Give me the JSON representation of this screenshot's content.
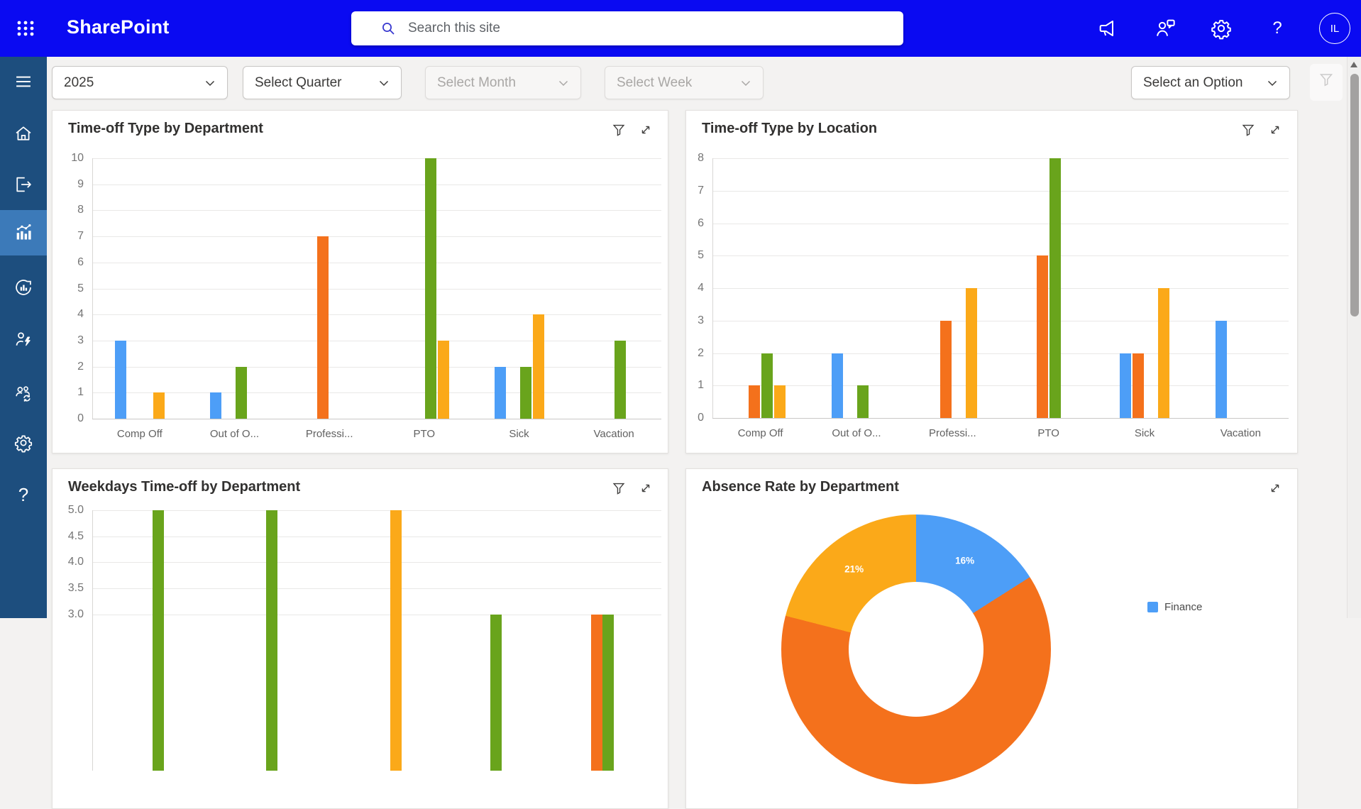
{
  "topbar": {
    "app_name": "SharePoint",
    "search_placeholder": "Search this site",
    "avatar_initials": "IL",
    "icons": [
      "app-launcher",
      "megaphone",
      "feedback",
      "settings",
      "help",
      "account"
    ]
  },
  "sidebar": {
    "active_item": "analytics",
    "icons": [
      "menu",
      "home",
      "sign-out",
      "analytics",
      "reports",
      "employee-quick-actions",
      "team-sync",
      "settings",
      "help"
    ]
  },
  "filters": {
    "year": {
      "value": "2025",
      "disabled": false
    },
    "quarter": {
      "value": "Select Quarter",
      "disabled": false
    },
    "month": {
      "value": "Select Month",
      "disabled": true
    },
    "week": {
      "value": "Select Week",
      "disabled": true
    },
    "option": {
      "value": "Select an Option",
      "disabled": false
    }
  },
  "colors": {
    "topbar_blue": "#0a0af2",
    "sidebar_blue": "#1d4e7e",
    "sidebar_active": "#3c7ab9",
    "blue": "#4d9ef7",
    "orange": "#f4711c",
    "green": "#69a41c",
    "amber": "#fba919",
    "grid": "#e9e8e7",
    "tick_text": "#757575"
  },
  "chart_data": [
    {
      "type": "bar",
      "title": "Time-off Type by Department",
      "header_icons": [
        "filter",
        "expand"
      ],
      "ylim": [
        0,
        10
      ],
      "y_ticks": [
        "10",
        "9",
        "8",
        "7",
        "6",
        "5",
        "4",
        "3",
        "2",
        "1",
        "0"
      ],
      "grid": true,
      "legend_position": "none",
      "categories": [
        "Comp Off",
        "Out of O...",
        "Professi...",
        "PTO",
        "Sick",
        "Vacation"
      ],
      "series_colors": [
        "blue",
        "orange",
        "green",
        "amber"
      ],
      "bars": [
        {
          "cat": 0,
          "slot": 0,
          "color": "blue",
          "value": 3
        },
        {
          "cat": 0,
          "slot": 3,
          "color": "amber",
          "value": 1
        },
        {
          "cat": 1,
          "slot": 0,
          "color": "blue",
          "value": 1
        },
        {
          "cat": 1,
          "slot": 2,
          "color": "green",
          "value": 2
        },
        {
          "cat": 2,
          "slot": 1,
          "color": "orange",
          "value": 7
        },
        {
          "cat": 3,
          "slot": 2,
          "color": "green",
          "value": 10
        },
        {
          "cat": 3,
          "slot": 3,
          "color": "amber",
          "value": 3
        },
        {
          "cat": 4,
          "slot": 0,
          "color": "blue",
          "value": 2
        },
        {
          "cat": 4,
          "slot": 2,
          "color": "green",
          "value": 2
        },
        {
          "cat": 4,
          "slot": 3,
          "color": "amber",
          "value": 4
        },
        {
          "cat": 5,
          "slot": 2,
          "color": "green",
          "value": 3
        }
      ]
    },
    {
      "type": "bar",
      "title": "Time-off Type by Location",
      "header_icons": [
        "filter",
        "expand"
      ],
      "ylim": [
        0,
        8
      ],
      "y_ticks": [
        "8",
        "7",
        "6",
        "5",
        "4",
        "3",
        "2",
        "1",
        "0"
      ],
      "grid": true,
      "legend_position": "none",
      "categories": [
        "Comp Off",
        "Out of O...",
        "Professi...",
        "PTO",
        "Sick",
        "Vacation"
      ],
      "series_colors": [
        "blue",
        "orange",
        "green",
        "amber"
      ],
      "bars": [
        {
          "cat": 0,
          "slot": 1,
          "color": "orange",
          "value": 1
        },
        {
          "cat": 0,
          "slot": 2,
          "color": "green",
          "value": 2
        },
        {
          "cat": 0,
          "slot": 3,
          "color": "amber",
          "value": 1
        },
        {
          "cat": 1,
          "slot": 0,
          "color": "blue",
          "value": 2
        },
        {
          "cat": 1,
          "slot": 2,
          "color": "green",
          "value": 1
        },
        {
          "cat": 2,
          "slot": 1,
          "color": "orange",
          "value": 3
        },
        {
          "cat": 2,
          "slot": 3,
          "color": "amber",
          "value": 4
        },
        {
          "cat": 3,
          "slot": 1,
          "color": "orange",
          "value": 5
        },
        {
          "cat": 3,
          "slot": 2,
          "color": "green",
          "value": 8
        },
        {
          "cat": 4,
          "slot": 0,
          "color": "blue",
          "value": 2
        },
        {
          "cat": 4,
          "slot": 1,
          "color": "orange",
          "value": 2
        },
        {
          "cat": 4,
          "slot": 3,
          "color": "amber",
          "value": 4
        },
        {
          "cat": 5,
          "slot": 0,
          "color": "blue",
          "value": 3
        }
      ]
    },
    {
      "type": "bar",
      "title": "Weekdays Time-off by Department",
      "header_icons": [
        "filter",
        "expand"
      ],
      "ylim": [
        0,
        5
      ],
      "y_ticks": [
        "5.0",
        "4.5",
        "4.0",
        "3.5",
        "3.0"
      ],
      "grid": true,
      "legend_position": "none",
      "categories": [],
      "note": "chart clipped by bottom edge of viewport",
      "bars": [
        {
          "xf": 0.116,
          "color": "green",
          "value": 5
        },
        {
          "xf": 0.315,
          "color": "green",
          "value": 5
        },
        {
          "xf": 0.534,
          "color": "amber",
          "value": 5
        },
        {
          "xf": 0.709,
          "color": "green",
          "value": 3
        },
        {
          "xf": 0.887,
          "color": "orange",
          "value": 3
        },
        {
          "xf": 0.907,
          "color": "green",
          "value": 3
        }
      ]
    },
    {
      "type": "donut",
      "title": "Absence Rate by Department",
      "header_icons": [
        "expand"
      ],
      "legend_position": "right",
      "segments": [
        {
          "legend": "Finance",
          "color": "blue",
          "pct": 16
        },
        {
          "legend": "",
          "color": "orange"
        },
        {
          "legend": "",
          "color": "amber",
          "pct": 21
        }
      ],
      "visible_labels": [
        "16%",
        "21%"
      ]
    }
  ]
}
